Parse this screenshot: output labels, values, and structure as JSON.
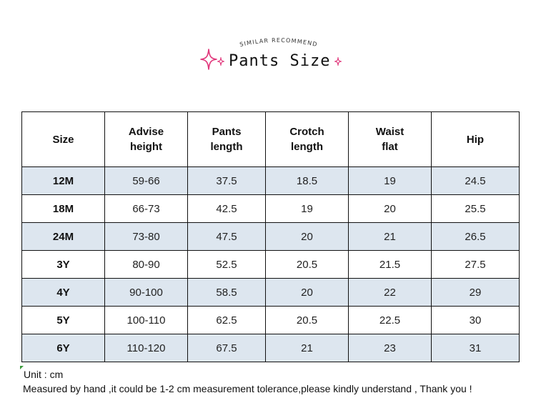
{
  "header": {
    "arc_text": "SIMILAR   RECOMMEND",
    "title": "Pants Size",
    "accent_color": "#e0357a"
  },
  "table": {
    "columns": [
      {
        "line1": "Size",
        "line2": ""
      },
      {
        "line1": "Advise",
        "line2": "height"
      },
      {
        "line1": "Pants",
        "line2": "length"
      },
      {
        "line1": "Crotch",
        "line2": "length"
      },
      {
        "line1": "Waist",
        "line2": "flat"
      },
      {
        "line1": "Hip",
        "line2": ""
      }
    ],
    "rows": [
      [
        "12M",
        "59-66",
        "37.5",
        "18.5",
        "19",
        "24.5"
      ],
      [
        "18M",
        "66-73",
        "42.5",
        "19",
        "20",
        "25.5"
      ],
      [
        "24M",
        "73-80",
        "47.5",
        "20",
        "21",
        "26.5"
      ],
      [
        "3Y",
        "80-90",
        "52.5",
        "20.5",
        "21.5",
        "27.5"
      ],
      [
        "4Y",
        "90-100",
        "58.5",
        "20",
        "22",
        "29"
      ],
      [
        "5Y",
        "100-110",
        "62.5",
        "20.5",
        "22.5",
        "30"
      ],
      [
        "6Y",
        "110-120",
        "67.5",
        "21",
        "23",
        "31"
      ]
    ],
    "shade_color": "#dde6ef"
  },
  "footer": {
    "unit": "Unit : cm",
    "note": "Measured by hand ,it could be 1-2 cm measurement tolerance,please kindly understand , Thank you !"
  }
}
